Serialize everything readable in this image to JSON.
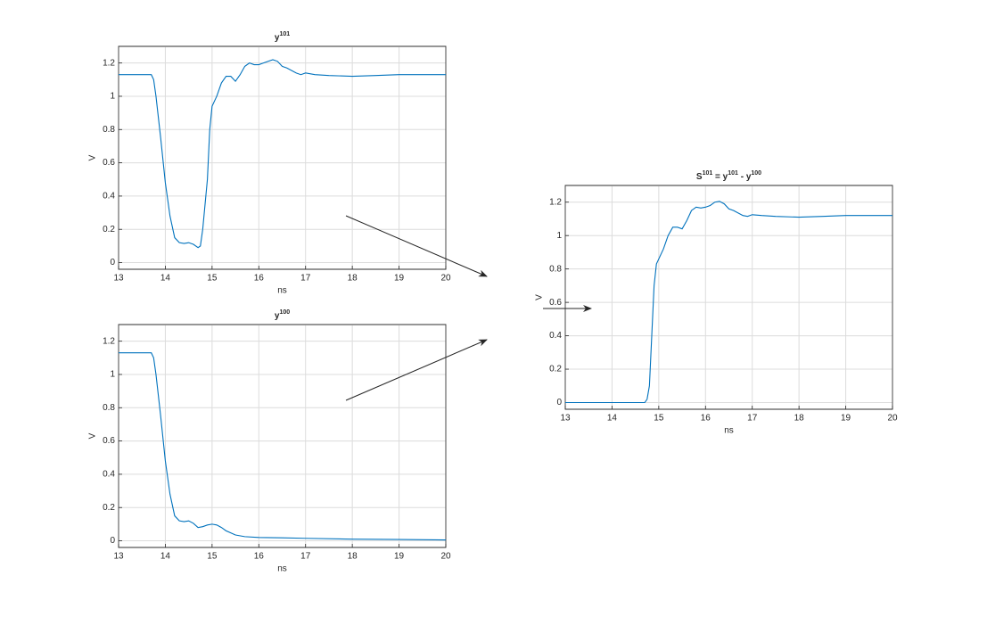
{
  "chart_data": [
    {
      "type": "line",
      "title": [
        "y",
        "101"
      ],
      "xlabel": "ns",
      "ylabel": "V",
      "xlim": [
        13,
        20
      ],
      "ylim": [
        -0.04,
        1.3
      ],
      "xticks": [
        13,
        14,
        15,
        16,
        17,
        18,
        19,
        20
      ],
      "yticks": [
        0,
        0.2,
        0.4,
        0.6,
        0.8,
        1,
        1.2
      ],
      "grid": true,
      "x": [
        13,
        13.7,
        13.75,
        13.8,
        13.9,
        14.0,
        14.1,
        14.2,
        14.3,
        14.4,
        14.5,
        14.6,
        14.7,
        14.75,
        14.8,
        14.9,
        14.95,
        15.0,
        15.1,
        15.2,
        15.3,
        15.4,
        15.5,
        15.6,
        15.7,
        15.8,
        15.9,
        16.0,
        16.1,
        16.2,
        16.3,
        16.4,
        16.5,
        16.6,
        16.8,
        16.9,
        17.0,
        17.2,
        17.5,
        18.0,
        18.5,
        19.0,
        20.0
      ],
      "series": [
        {
          "color": "#0072bd",
          "values": [
            1.13,
            1.13,
            1.1,
            1.0,
            0.75,
            0.48,
            0.28,
            0.15,
            0.12,
            0.115,
            0.12,
            0.11,
            0.09,
            0.1,
            0.2,
            0.5,
            0.8,
            0.94,
            1.0,
            1.08,
            1.12,
            1.12,
            1.09,
            1.13,
            1.18,
            1.2,
            1.19,
            1.19,
            1.2,
            1.21,
            1.22,
            1.21,
            1.18,
            1.17,
            1.14,
            1.13,
            1.14,
            1.13,
            1.125,
            1.12,
            1.125,
            1.13,
            1.13
          ]
        }
      ]
    },
    {
      "type": "line",
      "title": [
        "y",
        "100"
      ],
      "xlabel": "ns",
      "ylabel": "V",
      "xlim": [
        13,
        20
      ],
      "ylim": [
        -0.04,
        1.3
      ],
      "xticks": [
        13,
        14,
        15,
        16,
        17,
        18,
        19,
        20
      ],
      "yticks": [
        0,
        0.2,
        0.4,
        0.6,
        0.8,
        1,
        1.2
      ],
      "grid": true,
      "x": [
        13,
        13.7,
        13.75,
        13.8,
        13.9,
        14.0,
        14.1,
        14.2,
        14.3,
        14.4,
        14.5,
        14.6,
        14.7,
        14.8,
        14.9,
        15.0,
        15.1,
        15.2,
        15.3,
        15.5,
        15.7,
        16.0,
        16.5,
        17.0,
        18.0,
        19.0,
        20.0
      ],
      "series": [
        {
          "color": "#0072bd",
          "values": [
            1.13,
            1.13,
            1.1,
            1.0,
            0.75,
            0.48,
            0.28,
            0.15,
            0.12,
            0.115,
            0.12,
            0.105,
            0.08,
            0.085,
            0.095,
            0.1,
            0.095,
            0.08,
            0.06,
            0.035,
            0.025,
            0.02,
            0.018,
            0.015,
            0.01,
            0.008,
            0.005
          ]
        }
      ]
    },
    {
      "type": "line",
      "title": [
        "S",
        "101",
        " = y",
        "101",
        " - y",
        "100"
      ],
      "xlabel": "ns",
      "ylabel": "V",
      "xlim": [
        13,
        20
      ],
      "ylim": [
        -0.04,
        1.3
      ],
      "xticks": [
        13,
        14,
        15,
        16,
        17,
        18,
        19,
        20
      ],
      "yticks": [
        0,
        0.2,
        0.4,
        0.6,
        0.8,
        1,
        1.2
      ],
      "grid": true,
      "x": [
        13,
        14.7,
        14.75,
        14.8,
        14.85,
        14.9,
        14.95,
        15.0,
        15.1,
        15.2,
        15.3,
        15.4,
        15.5,
        15.6,
        15.7,
        15.8,
        15.9,
        16.0,
        16.1,
        16.2,
        16.3,
        16.4,
        16.5,
        16.6,
        16.8,
        16.9,
        17.0,
        17.2,
        17.5,
        18.0,
        18.5,
        19.0,
        20.0
      ],
      "series": [
        {
          "color": "#0072bd",
          "values": [
            0,
            0,
            0.02,
            0.1,
            0.4,
            0.7,
            0.83,
            0.86,
            0.92,
            1.0,
            1.05,
            1.05,
            1.04,
            1.09,
            1.15,
            1.17,
            1.165,
            1.17,
            1.18,
            1.2,
            1.205,
            1.19,
            1.16,
            1.15,
            1.12,
            1.115,
            1.125,
            1.12,
            1.115,
            1.11,
            1.115,
            1.12,
            1.12
          ]
        }
      ]
    }
  ]
}
